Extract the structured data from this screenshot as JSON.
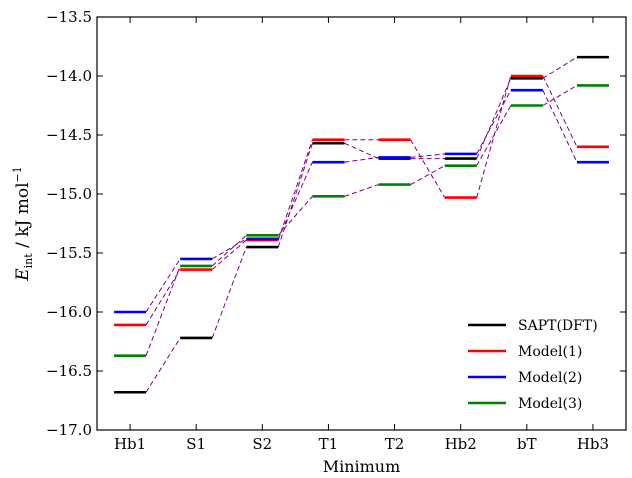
{
  "chart_data": {
    "type": "line",
    "title": "",
    "xlabel": "Minimum",
    "ylabel": {
      "symbol": "E",
      "subscript": "int",
      "unit_prefix": " / kJ mol",
      "unit_exponent": "−1"
    },
    "categories": [
      "Hb1",
      "S1",
      "S2",
      "T1",
      "T2",
      "Hb2",
      "bT",
      "Hb3"
    ],
    "ylim": [
      -17.0,
      -13.5
    ],
    "yticks": [
      -17.0,
      -16.5,
      -16.0,
      -15.5,
      -15.0,
      -14.5,
      -14.0,
      -13.5
    ],
    "ytick_labels": [
      "−17.0",
      "−16.5",
      "−16.0",
      "−15.5",
      "−15.0",
      "−14.5",
      "−14.0",
      "−13.5"
    ],
    "grid": false,
    "legend_position": "lower-right",
    "series": [
      {
        "name": "SAPT(DFT)",
        "color": "#000000",
        "values": [
          -16.68,
          -16.22,
          -15.45,
          -14.57,
          -14.7,
          -14.7,
          -14.02,
          -13.84
        ]
      },
      {
        "name": "Model(1)",
        "color": "#ff0000",
        "values": [
          -16.11,
          -15.64,
          -15.39,
          -14.54,
          -14.54,
          -15.03,
          -14.0,
          -14.6
        ]
      },
      {
        "name": "Model(2)",
        "color": "#0000ff",
        "values": [
          -16.0,
          -15.55,
          -15.38,
          -14.73,
          -14.69,
          -14.66,
          -14.12,
          -14.73
        ]
      },
      {
        "name": "Model(3)",
        "color": "#008000",
        "values": [
          -16.37,
          -15.61,
          -15.35,
          -15.02,
          -14.92,
          -14.76,
          -14.25,
          -14.08
        ]
      }
    ],
    "connector_color": "#800080"
  }
}
